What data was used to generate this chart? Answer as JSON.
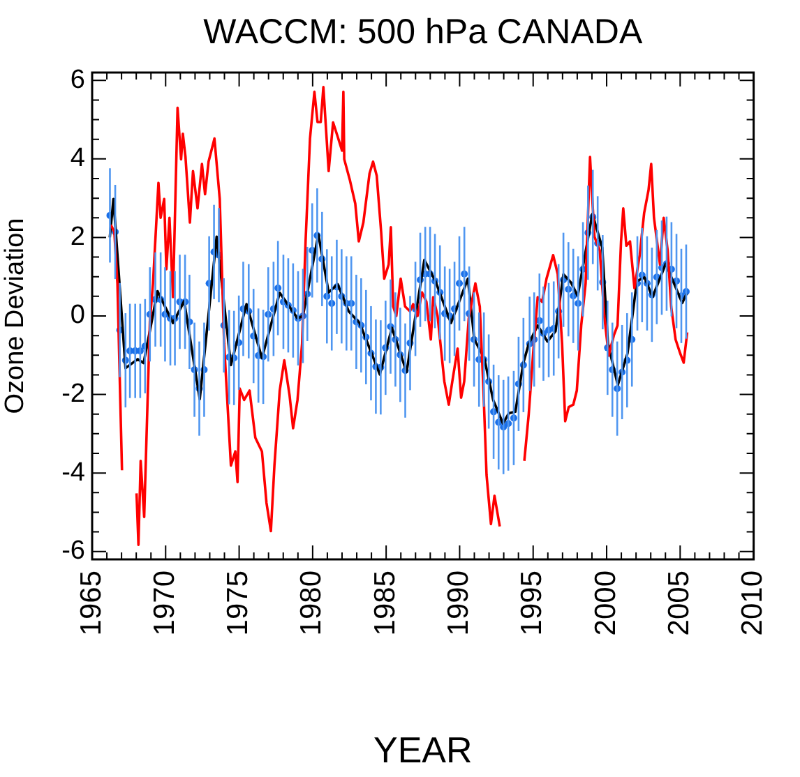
{
  "chart_data": {
    "type": "line",
    "title": "WACCM: 500 hPa CANADA",
    "xlabel": "YEAR",
    "ylabel": "Ozone Deviation",
    "xlim": [
      1965,
      2010
    ],
    "xticks": [
      1965,
      {
        "value": 1966,
        "label": null
      },
      {
        "value": 1967,
        "label": null
      },
      {
        "value": 1968,
        "label": null
      },
      {
        "value": 1969,
        "label": null
      },
      1970,
      {
        "value": 1971,
        "label": null
      },
      {
        "value": 1972,
        "label": null
      },
      {
        "value": 1973,
        "label": null
      },
      {
        "value": 1974,
        "label": null
      },
      1975,
      {
        "value": 1976,
        "label": null
      },
      {
        "value": 1977,
        "label": null
      },
      {
        "value": 1978,
        "label": null
      },
      {
        "value": 1979,
        "label": null
      },
      1980,
      {
        "value": 1981,
        "label": null
      },
      {
        "value": 1982,
        "label": null
      },
      {
        "value": 1983,
        "label": null
      },
      {
        "value": 1984,
        "label": null
      },
      1985,
      {
        "value": 1986,
        "label": null
      },
      {
        "value": 1987,
        "label": null
      },
      {
        "value": 1988,
        "label": null
      },
      {
        "value": 1989,
        "label": null
      },
      1990,
      {
        "value": 1991,
        "label": null
      },
      {
        "value": 1992,
        "label": null
      },
      {
        "value": 1993,
        "label": null
      },
      {
        "value": 1994,
        "label": null
      },
      1995,
      {
        "value": 1996,
        "label": null
      },
      {
        "value": 1997,
        "label": null
      },
      {
        "value": 1998,
        "label": null
      },
      {
        "value": 1999,
        "label": null
      },
      2000,
      {
        "value": 2001,
        "label": null
      },
      {
        "value": 2002,
        "label": null
      },
      {
        "value": 2003,
        "label": null
      },
      {
        "value": 2004,
        "label": null
      },
      2005,
      {
        "value": 2006,
        "label": null
      },
      {
        "value": 2007,
        "label": null
      },
      {
        "value": 2008,
        "label": null
      },
      {
        "value": 2009,
        "label": null
      },
      2010
    ],
    "ylim": [
      -6.2,
      6.2
    ],
    "yticks": [
      -6,
      {
        "value": -5.5,
        "label": null
      },
      {
        "value": -5,
        "label": null
      },
      {
        "value": -4.5,
        "label": null
      },
      -4,
      {
        "value": -3.5,
        "label": null
      },
      {
        "value": -3,
        "label": null
      },
      {
        "value": -2.5,
        "label": null
      },
      -2,
      {
        "value": -1.5,
        "label": null
      },
      {
        "value": -1,
        "label": null
      },
      {
        "value": -0.5,
        "label": null
      },
      0,
      {
        "value": 0.5,
        "label": null
      },
      {
        "value": 1,
        "label": null
      },
      {
        "value": 1.5,
        "label": null
      },
      2,
      {
        "value": 2.5,
        "label": null
      },
      {
        "value": 3,
        "label": null
      },
      {
        "value": 3.5,
        "label": null
      },
      4,
      {
        "value": 4.5,
        "label": null
      },
      {
        "value": 5,
        "label": null
      },
      {
        "value": 5.5,
        "label": null
      },
      6
    ],
    "grid": false,
    "legend": false,
    "series": [
      {
        "marker": "none",
        "color": "#ff0000",
        "x": [
          1966.27,
          1966.51,
          1966.72,
          1967.03,
          1967.24,
          1967.6,
          1967.93,
          1968.02,
          1968.15,
          1968.3,
          1968.54,
          1968.93,
          1969.14,
          1969.51,
          1969.66,
          1969.9,
          1970.05,
          1970.26,
          1970.5,
          1970.81,
          1971.05,
          1971.17,
          1971.35,
          1971.65,
          1971.86,
          1972.17,
          1972.47,
          1972.68,
          1972.92,
          1973.32,
          1973.68,
          1973.98,
          1974.44,
          1974.74,
          1974.89,
          1975.04,
          1975.34,
          1975.71,
          1976.1,
          1976.55,
          1976.86,
          1977.16,
          1977.4,
          1977.76,
          1978.07,
          1978.43,
          1978.67,
          1978.97,
          1979.28,
          1979.52,
          1979.82,
          1980.12,
          1980.33,
          1980.55,
          1980.73,
          1981.09,
          1981.39,
          1981.7,
          1982.0,
          1982.09,
          1982.15,
          1982.54,
          1982.9,
          1983.14,
          1983.45,
          1983.87,
          1984.11,
          1984.36,
          1984.66,
          1984.87,
          1985.17,
          1985.32,
          1985.48,
          1985.69,
          1985.99,
          1986.29,
          1986.62,
          1986.84,
          1987.14,
          1987.44,
          1987.74,
          1988.04,
          1988.2,
          1988.5,
          1988.96,
          1989.26,
          1989.5,
          1989.86,
          1990.1,
          1990.31,
          1990.62,
          1991.07,
          1991.37,
          1991.62,
          1991.83,
          1992.13,
          1992.37,
          1992.73,
          1993.03,
          1993.5,
          1994.1,
          1994.4,
          1994.7,
          1995.0,
          1995.31,
          1995.61,
          1995.91,
          1996.36,
          1996.67,
          1996.97,
          1997.18,
          1997.42,
          1997.73,
          1997.97,
          1998.27,
          1998.57,
          1998.87,
          1998.99,
          1999.17,
          1999.53,
          1999.84,
          2000.14,
          2000.5,
          2000.74,
          2000.98,
          2001.13,
          2001.34,
          2001.59,
          2001.89,
          2002.25,
          2002.55,
          2002.85,
          2003.03,
          2003.22,
          2003.63,
          2003.88,
          2004.15,
          2004.39,
          2004.69,
          2005.0,
          2005.24,
          2005.48
        ],
        "values": [
          2.32,
          2.14,
          0.83,
          -3.93,
          null,
          null,
          null,
          -4.52,
          -5.83,
          -3.69,
          -5.12,
          -0.12,
          0.83,
          3.39,
          2.5,
          2.98,
          1.19,
          2.5,
          0.48,
          5.3,
          3.99,
          4.64,
          4.05,
          2.38,
          3.69,
          2.74,
          3.87,
          3.1,
          3.93,
          4.52,
          2.98,
          -0.71,
          -3.81,
          -3.45,
          -4.23,
          -1.85,
          -2.14,
          -1.9,
          -3.1,
          -3.45,
          -4.76,
          -5.48,
          -3.81,
          -1.9,
          -1.13,
          -2.02,
          -2.86,
          -2.14,
          -0.71,
          1.9,
          4.52,
          5.71,
          4.94,
          4.94,
          5.83,
          3.69,
          4.93,
          4.57,
          4.21,
          5.71,
          3.99,
          3.45,
          2.86,
          1.9,
          2.38,
          3.63,
          3.93,
          3.57,
          2.14,
          0.95,
          1.31,
          2.26,
          0.24,
          0.0,
          0.95,
          0.24,
          0.12,
          0.3,
          0.0,
          0.6,
          0.36,
          -0.6,
          0.48,
          0.0,
          -1.67,
          -2.26,
          -1.67,
          -0.83,
          -2.08,
          -1.67,
          -0.06,
          0.83,
          0.24,
          -1.9,
          -4.05,
          -5.3,
          -4.58,
          -5.36,
          null,
          null,
          null,
          -3.69,
          -2.5,
          -0.95,
          0.48,
          0.36,
          0.95,
          1.55,
          1.07,
          -0.71,
          -2.68,
          -2.32,
          -2.26,
          -1.9,
          -0.24,
          0.83,
          4.05,
          3.21,
          2.02,
          1.67,
          0.0,
          -1.01,
          -0.48,
          -0.24,
          1.9,
          2.74,
          1.79,
          1.9,
          0.71,
          1.55,
          2.62,
          3.21,
          3.87,
          2.5,
          1.31,
          2.5,
          1.67,
          0.24,
          -0.6,
          -0.95,
          -1.19,
          -0.42
        ]
      },
      {
        "marker": "none",
        "color": "#000000",
        "x": [
          1966.2,
          1966.45,
          1967.27,
          1968.1,
          1968.5,
          1969.45,
          1970.5,
          1971.26,
          1972.32,
          1973.47,
          1974.44,
          1975.5,
          1976.55,
          1977.76,
          1978.97,
          1979.34,
          1980.39,
          1981.09,
          1981.7,
          1982.45,
          1983.2,
          1984.57,
          1985.39,
          1986.39,
          1987.6,
          1988.35,
          1989.41,
          1990.56,
          1991.0,
          1991.67,
          1992.28,
          1992.95,
          1993.34,
          1993.79,
          1994.34,
          1994.7,
          1995.31,
          1995.97,
          1996.52,
          1997.06,
          1997.58,
          1998.03,
          1999.03,
          1999.7,
          2000.09,
          2000.76,
          2001.42,
          2002.06,
          2002.58,
          2003.12,
          2004.02,
          2005.14,
          2005.44
        ],
        "values": [
          2.0,
          2.98,
          -1.33,
          -1.1,
          -1.2,
          0.63,
          -0.18,
          0.38,
          -2.12,
          2.02,
          -1.25,
          0.3,
          -1.07,
          0.59,
          -0.06,
          0.0,
          2.08,
          0.6,
          0.81,
          0.12,
          -0.18,
          -1.49,
          -0.3,
          -1.43,
          1.43,
          0.89,
          -0.18,
          0.95,
          -0.6,
          -1.07,
          -2.14,
          -2.74,
          -2.48,
          -2.44,
          -1.19,
          -0.71,
          -0.24,
          -0.65,
          -0.39,
          1.06,
          0.85,
          0.51,
          2.6,
          1.74,
          -0.71,
          -1.76,
          -0.95,
          0.89,
          0.98,
          0.48,
          1.33,
          0.33,
          0.57
        ]
      },
      {
        "type": "scatter",
        "marker": "circle",
        "color": "#1a6fe8",
        "x": [
          1966.21,
          1966.57,
          1966.88,
          1967.27,
          1967.57,
          1967.93,
          1968.27,
          1968.6,
          1968.93,
          1969.3,
          1969.66,
          1969.96,
          1970.32,
          1970.63,
          1970.96,
          1971.32,
          1971.62,
          1971.96,
          1972.29,
          1972.62,
          1972.96,
          1973.29,
          1973.62,
          1973.96,
          1974.32,
          1974.65,
          1974.98,
          1975.28,
          1975.65,
          1975.98,
          1976.31,
          1976.64,
          1976.98,
          1977.34,
          1977.64,
          1978.01,
          1978.34,
          1978.67,
          1979.01,
          1979.34,
          1979.64,
          1979.97,
          1980.31,
          1980.64,
          1980.97,
          1981.3,
          1981.64,
          1981.97,
          1982.3,
          1982.63,
          1982.97,
          1983.3,
          1983.63,
          1983.97,
          1984.3,
          1984.63,
          1984.96,
          1985.3,
          1985.63,
          1985.96,
          1986.3,
          1986.63,
          1986.99,
          1987.32,
          1987.66,
          1987.99,
          1988.32,
          1988.66,
          1988.99,
          1989.32,
          1989.65,
          1989.98,
          1990.32,
          1990.65,
          1990.98,
          1991.32,
          1991.65,
          1991.98,
          1992.31,
          1992.65,
          1992.98,
          1993.31,
          1993.68,
          1994.01,
          1994.34,
          1994.76,
          1995.07,
          1995.43,
          1995.7,
          1996.06,
          1996.4,
          1996.73,
          1997.06,
          1997.4,
          1997.73,
          1998.06,
          1998.39,
          1998.73,
          1999.06,
          1999.39,
          1999.73,
          2000.06,
          2000.39,
          2000.72,
          2001.05,
          2001.39,
          2001.72,
          2002.09,
          2002.41,
          2002.75,
          2003.08,
          2003.41,
          2003.75,
          2004.08,
          2004.41,
          2004.75,
          2005.08,
          2005.41
        ],
        "values": [
          2.56,
          2.14,
          -0.36,
          -1.13,
          -0.89,
          -0.89,
          -0.89,
          -0.77,
          0.04,
          0.42,
          0.42,
          0.04,
          -0.06,
          -0.06,
          0.36,
          0.36,
          -0.15,
          -1.37,
          -1.85,
          -1.37,
          0.83,
          1.63,
          1.55,
          -0.24,
          -1.05,
          -1.07,
          -0.68,
          0.18,
          0.12,
          -0.51,
          -1.01,
          -1.04,
          0.04,
          0.18,
          0.71,
          0.36,
          0.27,
          0.14,
          -0.06,
          0.0,
          0.56,
          1.67,
          2.05,
          1.45,
          0.5,
          0.32,
          0.74,
          0.5,
          0.32,
          0.32,
          -0.15,
          -0.24,
          -0.54,
          -0.95,
          -1.29,
          -1.31,
          -0.81,
          -0.27,
          -0.6,
          -0.99,
          -1.39,
          -0.69,
          0.18,
          0.92,
          1.07,
          1.07,
          0.89,
          0.6,
          0.06,
          0.0,
          0.18,
          0.83,
          1.07,
          0.06,
          -0.6,
          -1.11,
          -1.11,
          -1.67,
          -2.44,
          -2.71,
          -2.83,
          -2.74,
          -2.6,
          -1.73,
          -1.25,
          -0.71,
          -0.6,
          -0.12,
          -0.45,
          -0.36,
          -0.32,
          0.12,
          0.92,
          0.68,
          0.51,
          0.32,
          1.19,
          2.12,
          2.52,
          1.85,
          0.86,
          -0.81,
          -1.37,
          -1.85,
          -1.43,
          -1.13,
          -0.6,
          0.83,
          1.04,
          0.83,
          0.54,
          0.99,
          1.23,
          1.33,
          1.19,
          0.89,
          0.51,
          0.62
        ],
        "errors": [
          1.2,
          1.2,
          1.2,
          1.2,
          1.2,
          1.2,
          1.2,
          1.2,
          1.2,
          1.2,
          1.2,
          1.2,
          1.2,
          1.2,
          1.2,
          1.2,
          1.2,
          1.2,
          1.2,
          1.2,
          1.2,
          1.2,
          1.2,
          1.2,
          1.2,
          1.2,
          1.2,
          1.2,
          1.2,
          1.2,
          1.2,
          1.2,
          1.2,
          1.2,
          1.2,
          1.2,
          1.2,
          1.2,
          1.2,
          1.2,
          1.2,
          1.2,
          1.2,
          1.2,
          1.2,
          1.2,
          1.2,
          1.2,
          1.2,
          1.2,
          1.2,
          1.2,
          1.2,
          1.2,
          1.2,
          1.2,
          1.2,
          1.2,
          1.2,
          1.2,
          1.2,
          1.2,
          1.2,
          1.2,
          1.2,
          1.2,
          1.2,
          1.2,
          1.2,
          1.2,
          1.2,
          1.2,
          1.2,
          1.2,
          1.2,
          1.2,
          1.2,
          1.2,
          1.2,
          1.2,
          1.2,
          1.2,
          1.2,
          1.2,
          1.2,
          1.2,
          1.2,
          1.2,
          1.2,
          1.2,
          1.2,
          1.2,
          1.2,
          1.2,
          1.2,
          1.2,
          1.2,
          1.2,
          1.2,
          1.2,
          1.2,
          1.2,
          1.2,
          1.2,
          1.2,
          1.2,
          1.2,
          1.2,
          1.2,
          1.2,
          1.2,
          1.2,
          1.2,
          1.2,
          1.2,
          1.2,
          1.2,
          1.2
        ]
      }
    ]
  }
}
